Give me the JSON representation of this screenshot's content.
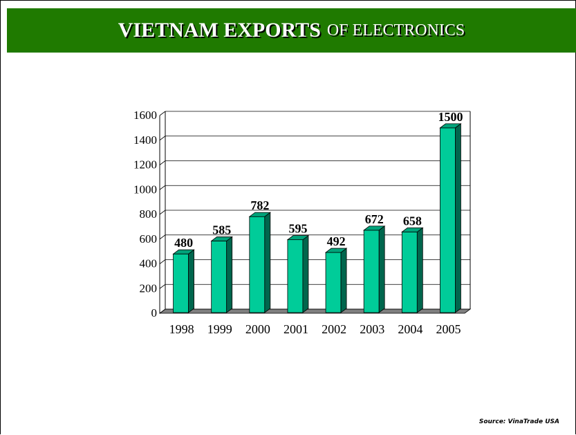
{
  "title": {
    "strong": "VIETNAM EXPORTS",
    "rest": "OF ELECTRONICS"
  },
  "source": "Source: VinaTrade USA",
  "colors": {
    "title_bg": "#1f7a00",
    "bar_front": "#00cc99",
    "bar_side": "#00664d",
    "bar_top": "#00a37a",
    "floor": "#808080"
  },
  "chart_data": {
    "type": "bar",
    "categories": [
      "1998",
      "1999",
      "2000",
      "2001",
      "2002",
      "2003",
      "2004",
      "2005"
    ],
    "values": [
      480,
      585,
      782,
      595,
      492,
      672,
      658,
      1500
    ],
    "title": "",
    "xlabel": "",
    "ylabel": "",
    "ylim": [
      0,
      1600
    ],
    "yticks": [
      0,
      200,
      400,
      600,
      800,
      1000,
      1200,
      1400,
      1600
    ],
    "grid": true,
    "legend": "none",
    "data_labels": true,
    "style": "3d-column"
  }
}
